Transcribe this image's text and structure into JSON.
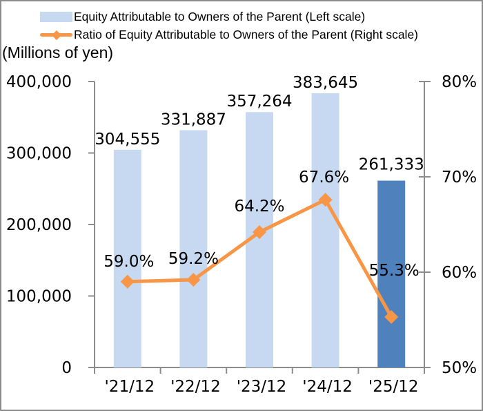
{
  "legend": {
    "bar_label": "Equity Attributable to Owners of the Parent (Left scale)",
    "line_label": "Ratio of Equity Attributable to Owners of the Parent (Right scale)"
  },
  "unit_label": "(Millions of yen)",
  "colors": {
    "bar_fill": "#C6D9F1",
    "bar_fill_highlight": "#4F81BD",
    "line": "#F79646",
    "axis": "#8C8C8C",
    "text": "#000000",
    "frame_border": "#8C8C8C",
    "background": "#FFFFFF"
  },
  "chart_data": {
    "type": "combo-bar-line",
    "categories": [
      "'21/12",
      "'22/12",
      "'23/12",
      "'24/12",
      "'25/12"
    ],
    "series": [
      {
        "name": "Equity Attributable to Owners of the Parent (Left scale)",
        "type": "bar",
        "axis": "left",
        "values": [
          304555,
          331887,
          357264,
          383645,
          261333
        ],
        "data_labels": [
          "304,555",
          "331,887",
          "357,264",
          "383,645",
          "261,333"
        ],
        "highlight_index": 4
      },
      {
        "name": "Ratio of Equity Attributable to Owners of the Parent (Right scale)",
        "type": "line",
        "axis": "right",
        "marker": "diamond",
        "values": [
          59.0,
          59.2,
          64.2,
          67.6,
          55.3
        ],
        "data_labels": [
          "59.0%",
          "59.2%",
          "64.2%",
          "67.6%",
          "55.3%"
        ]
      }
    ],
    "left_axis": {
      "title": "(Millions of yen)",
      "min": 0,
      "max": 400000,
      "step": 100000,
      "tick_labels": [
        "0",
        "100,000",
        "200,000",
        "300,000",
        "400,000"
      ]
    },
    "right_axis": {
      "min": 50,
      "max": 80,
      "step": 10,
      "tick_labels": [
        "50%",
        "60%",
        "70%",
        "80%"
      ]
    },
    "grid": false,
    "legend_position": "top-left"
  }
}
